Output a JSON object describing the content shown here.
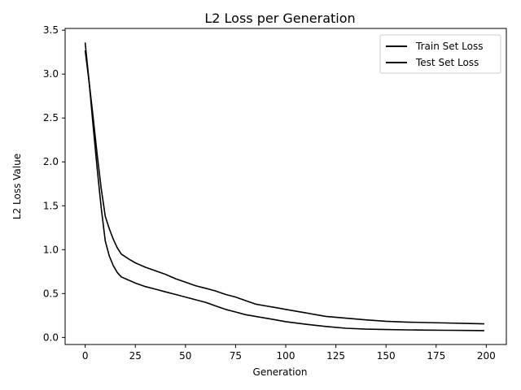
{
  "chart_data": {
    "type": "line",
    "title": "L2 Loss per Generation",
    "xlabel": "Generation",
    "ylabel": "L2 Loss Value",
    "xlim": [
      -10,
      210
    ],
    "ylim": [
      -0.08,
      3.52
    ],
    "xticks": [
      0,
      25,
      50,
      75,
      100,
      125,
      150,
      175,
      200
    ],
    "xtick_labels": [
      "0",
      "25",
      "50",
      "75",
      "100",
      "125",
      "150",
      "175",
      "200"
    ],
    "yticks": [
      0.0,
      0.5,
      1.0,
      1.5,
      2.0,
      2.5,
      3.0,
      3.5
    ],
    "ytick_labels": [
      "0.0",
      "0.5",
      "1.0",
      "1.5",
      "2.0",
      "2.5",
      "3.0",
      "3.5"
    ],
    "grid": false,
    "legend_position": "top-right",
    "series": [
      {
        "name": "Train Set Loss",
        "color": "#000000",
        "x": [
          0,
          2,
          4,
          6,
          8,
          10,
          12,
          14,
          16,
          18,
          20,
          22,
          25,
          30,
          35,
          40,
          45,
          50,
          55,
          60,
          65,
          70,
          75,
          80,
          85,
          90,
          95,
          100,
          110,
          120,
          130,
          140,
          150,
          160,
          170,
          180,
          190,
          199
        ],
        "y": [
          3.36,
          2.9,
          2.4,
          1.92,
          1.48,
          1.1,
          0.93,
          0.82,
          0.74,
          0.69,
          0.67,
          0.65,
          0.62,
          0.58,
          0.55,
          0.52,
          0.49,
          0.46,
          0.43,
          0.4,
          0.36,
          0.32,
          0.29,
          0.26,
          0.24,
          0.22,
          0.2,
          0.18,
          0.15,
          0.125,
          0.105,
          0.095,
          0.09,
          0.087,
          0.084,
          0.082,
          0.08,
          0.078
        ]
      },
      {
        "name": "Test Set Loss",
        "color": "#000000",
        "x": [
          0,
          2,
          4,
          6,
          8,
          10,
          12,
          14,
          16,
          18,
          20,
          22,
          25,
          30,
          35,
          40,
          45,
          50,
          55,
          60,
          65,
          70,
          75,
          80,
          85,
          90,
          95,
          100,
          110,
          120,
          130,
          140,
          150,
          160,
          170,
          180,
          190,
          199
        ],
        "y": [
          3.27,
          2.9,
          2.5,
          2.08,
          1.7,
          1.38,
          1.24,
          1.12,
          1.02,
          0.95,
          0.92,
          0.89,
          0.85,
          0.8,
          0.76,
          0.72,
          0.67,
          0.63,
          0.59,
          0.56,
          0.53,
          0.49,
          0.46,
          0.42,
          0.38,
          0.36,
          0.34,
          0.32,
          0.28,
          0.24,
          0.22,
          0.2,
          0.185,
          0.175,
          0.17,
          0.165,
          0.16,
          0.155
        ]
      }
    ]
  }
}
